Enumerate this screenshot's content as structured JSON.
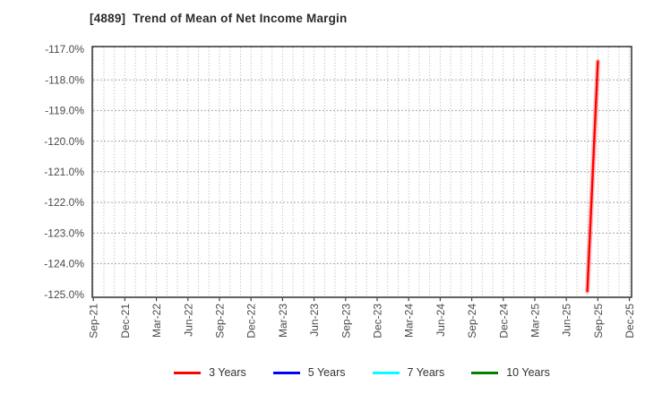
{
  "title": "[4889]  Trend of Mean of Net Income Margin",
  "chart_data": {
    "type": "line",
    "title": "[4889]  Trend of Mean of Net Income Margin",
    "x_axis": {
      "tick_labels": [
        "Sep-21",
        "Dec-21",
        "Mar-22",
        "Jun-22",
        "Sep-22",
        "Dec-22",
        "Mar-23",
        "Jun-23",
        "Sep-23",
        "Dec-23",
        "Mar-24",
        "Jun-24",
        "Sep-24",
        "Dec-24",
        "Mar-25",
        "Jun-25",
        "Sep-25",
        "Dec-25"
      ],
      "months_per_tick": 3,
      "total_months": 52,
      "first_month": "Sep-21",
      "last_month": "Dec-25"
    },
    "y_axis": {
      "tick_labels": [
        "-117.0%",
        "-118.0%",
        "-119.0%",
        "-120.0%",
        "-121.0%",
        "-122.0%",
        "-123.0%",
        "-124.0%",
        "-125.0%"
      ],
      "tick_values": [
        -117.0,
        -118.0,
        -119.0,
        -120.0,
        -121.0,
        -122.0,
        -123.0,
        -124.0,
        -125.0
      ],
      "range": [
        -125.0,
        -117.0
      ],
      "unit": "%"
    },
    "grid": true,
    "legend_position": "bottom",
    "series": [
      {
        "name": "3 Years",
        "color": "#ff0000",
        "points": [
          {
            "x": "Aug-25",
            "month_index": 47,
            "y": -124.9
          },
          {
            "x": "Sep-25",
            "month_index": 48,
            "y": -117.4
          }
        ]
      },
      {
        "name": "5 Years",
        "color": "#0000ff",
        "points": []
      },
      {
        "name": "7 Years",
        "color": "#00ffff",
        "points": []
      },
      {
        "name": "10 Years",
        "color": "#008000",
        "points": []
      }
    ],
    "colors": {
      "background": "#ffffff",
      "plot_border": "#3b3b3b",
      "grid_line": "#b0b0b0",
      "tick_label": "#4a4a4a",
      "title_text": "#2b2b2b"
    }
  }
}
